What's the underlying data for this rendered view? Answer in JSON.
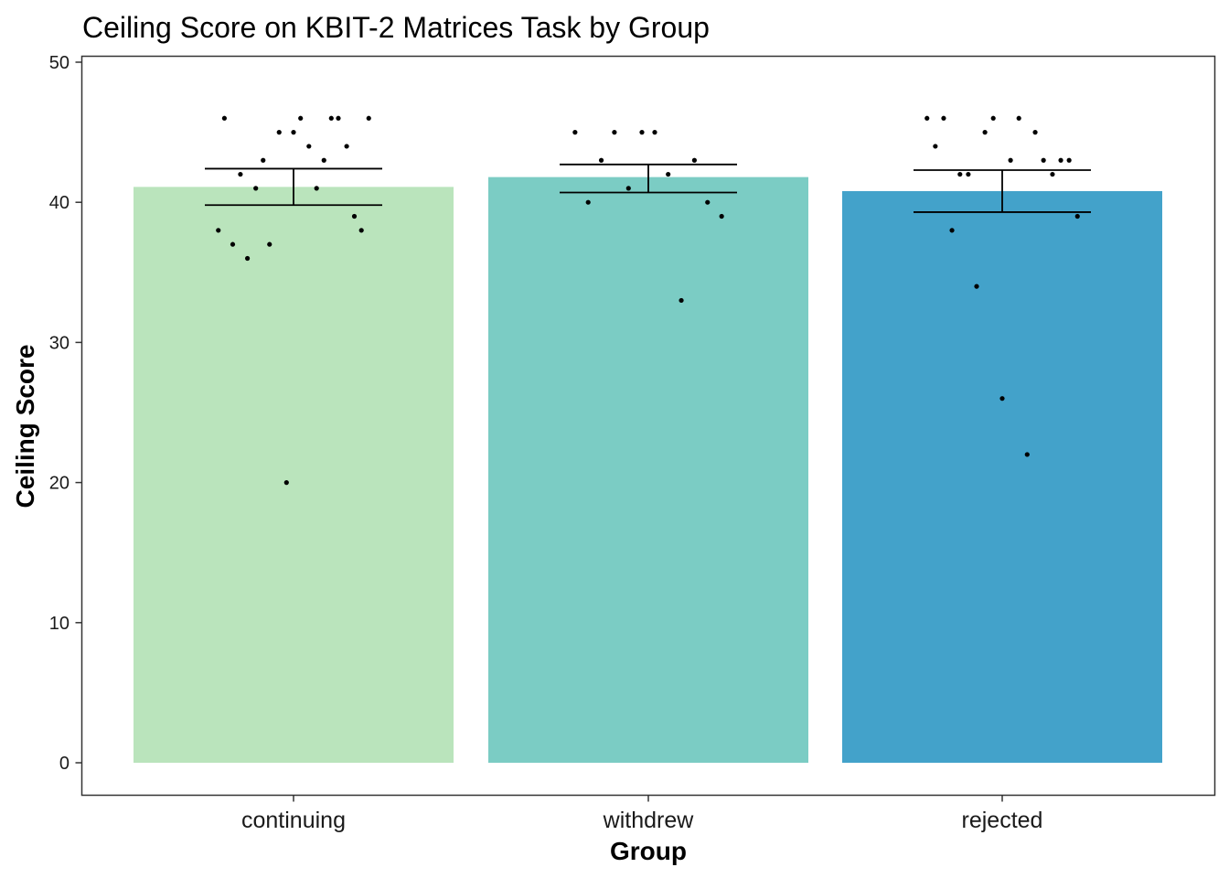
{
  "chart_data": {
    "type": "bar",
    "title": "Ceiling Score on KBIT-2 Matrices Task by Group",
    "xlabel": "Group",
    "ylabel": "Ceiling Score",
    "ylim": [
      0,
      50
    ],
    "yticks": [
      0,
      10,
      20,
      30,
      40,
      50
    ],
    "grid": false,
    "categories": [
      "continuing",
      "withdrew",
      "rejected"
    ],
    "values": [
      41.1,
      41.8,
      40.8
    ],
    "error_bars": [
      {
        "lower": 39.8,
        "upper": 42.4
      },
      {
        "lower": 40.7,
        "upper": 42.7
      },
      {
        "lower": 39.3,
        "upper": 42.3
      }
    ],
    "colors": [
      "#bae4bc",
      "#7bccc4",
      "#43a2ca"
    ],
    "points": [
      [
        {
          "x": -0.216,
          "y": 46
        },
        {
          "x": -0.235,
          "y": 38
        },
        {
          "x": -0.19,
          "y": 37
        },
        {
          "x": -0.144,
          "y": 36
        },
        {
          "x": -0.166,
          "y": 42
        },
        {
          "x": -0.118,
          "y": 41
        },
        {
          "x": -0.095,
          "y": 43
        },
        {
          "x": -0.075,
          "y": 37
        },
        {
          "x": -0.045,
          "y": 45
        },
        {
          "x": -0.022,
          "y": 20
        },
        {
          "x": 0.0,
          "y": 45
        },
        {
          "x": 0.022,
          "y": 46
        },
        {
          "x": 0.048,
          "y": 44
        },
        {
          "x": 0.072,
          "y": 41
        },
        {
          "x": 0.095,
          "y": 43
        },
        {
          "x": 0.118,
          "y": 46
        },
        {
          "x": 0.14,
          "y": 46
        },
        {
          "x": 0.166,
          "y": 44
        },
        {
          "x": 0.19,
          "y": 39
        },
        {
          "x": 0.212,
          "y": 38
        },
        {
          "x": 0.235,
          "y": 46
        }
      ],
      [
        {
          "x": -0.229,
          "y": 45
        },
        {
          "x": -0.188,
          "y": 40
        },
        {
          "x": -0.147,
          "y": 43
        },
        {
          "x": -0.106,
          "y": 45
        },
        {
          "x": -0.062,
          "y": 41
        },
        {
          "x": -0.02,
          "y": 45
        },
        {
          "x": 0.02,
          "y": 45
        },
        {
          "x": 0.062,
          "y": 42
        },
        {
          "x": 0.103,
          "y": 33
        },
        {
          "x": 0.144,
          "y": 43
        },
        {
          "x": 0.185,
          "y": 40
        },
        {
          "x": 0.229,
          "y": 39
        }
      ],
      [
        {
          "x": -0.235,
          "y": 46
        },
        {
          "x": -0.209,
          "y": 44
        },
        {
          "x": -0.183,
          "y": 46
        },
        {
          "x": -0.157,
          "y": 38
        },
        {
          "x": -0.132,
          "y": 42
        },
        {
          "x": -0.106,
          "y": 42
        },
        {
          "x": -0.08,
          "y": 34
        },
        {
          "x": -0.054,
          "y": 45
        },
        {
          "x": -0.028,
          "y": 46
        },
        {
          "x": 0.0,
          "y": 26
        },
        {
          "x": 0.026,
          "y": 43
        },
        {
          "x": 0.052,
          "y": 46
        },
        {
          "x": 0.078,
          "y": 22
        },
        {
          "x": 0.103,
          "y": 45
        },
        {
          "x": 0.129,
          "y": 43
        },
        {
          "x": 0.157,
          "y": 42
        },
        {
          "x": 0.183,
          "y": 43
        },
        {
          "x": 0.209,
          "y": 43
        },
        {
          "x": 0.235,
          "y": 39
        }
      ]
    ]
  }
}
